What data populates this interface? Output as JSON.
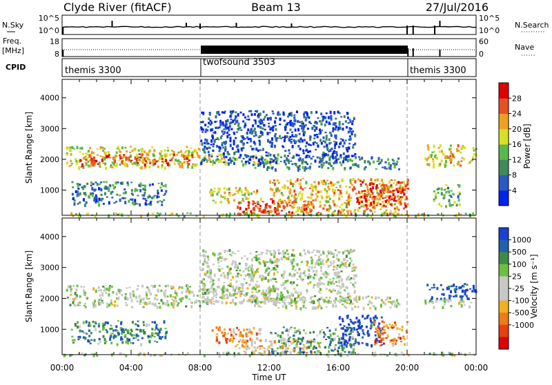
{
  "header": {
    "station_title": "Clyde River (fitACF)",
    "beam_title": "Beam 13",
    "date_title": "27/Jul/2016"
  },
  "nsky_panel": {
    "left_label": "N.Sky",
    "left_ticks": [
      "10^5",
      "10^0"
    ],
    "right_label": "N.Search",
    "right_ticks": [
      "10^5",
      "10^0"
    ]
  },
  "freq_panel": {
    "left_label_1": "Freq.",
    "left_label_2": "[MHz]",
    "left_ticks": [
      "18",
      "8"
    ],
    "right_label": "Nave",
    "right_ticks": [
      "60",
      "0"
    ]
  },
  "cpid_panel": {
    "label": "CPID",
    "segments": [
      {
        "label": "themis 3300",
        "start_h": 0,
        "end_h": 8
      },
      {
        "label": "twofsound 3503",
        "start_h": 8,
        "end_h": 20
      },
      {
        "label": "themis 3300",
        "start_h": 20,
        "end_h": 24
      }
    ]
  },
  "colors": {
    "power_scale": [
      "#0022ee",
      "#2a58c4",
      "#3f8a5a",
      "#5ab84a",
      "#d8e022",
      "#f0a020",
      "#e85020",
      "#e00000"
    ],
    "velocity_scale": [
      "#1a40d0",
      "#2060b0",
      "#3c8a48",
      "#6cc040",
      "#c8c8c4",
      "#c8c8c4",
      "#f0b020",
      "#f07a18",
      "#e84010",
      "#e00000"
    ]
  },
  "chart_data": [
    {
      "type": "heatmap",
      "name": "power",
      "ylabel": "Slant Range [km]",
      "xlabel": "Time UT",
      "x_ticks": [
        "00:00",
        "04:00",
        "08:00",
        "12:00",
        "16:00",
        "20:00",
        "00:00"
      ],
      "x_range_hours": [
        0,
        24
      ],
      "y_ticks": [
        1000,
        2000,
        3000,
        4000
      ],
      "ylim": [
        180,
        4600
      ],
      "colorbar_label": "Power [dB]",
      "colorbar_ticks": [
        4,
        8,
        12,
        16,
        20,
        24,
        28
      ],
      "colorbar_range": [
        0,
        32
      ],
      "mode_change_hours": [
        8,
        20
      ],
      "regions": [
        {
          "t": [
            0.2,
            8.0
          ],
          "r": [
            1750,
            2450
          ],
          "level": 0.55
        },
        {
          "t": [
            1.0,
            7.5
          ],
          "r": [
            1850,
            2200
          ],
          "level": 0.8
        },
        {
          "t": [
            8.0,
            12.5
          ],
          "r": [
            1850,
            2200
          ],
          "level": 0.55
        },
        {
          "t": [
            11.0,
            19.5
          ],
          "r": [
            1700,
            2100
          ],
          "level": 0.3
        },
        {
          "t": [
            0.5,
            6.0
          ],
          "r": [
            550,
            1300
          ],
          "level": 0.25
        },
        {
          "t": [
            8.5,
            11.5
          ],
          "r": [
            600,
            1100
          ],
          "level": 0.6
        },
        {
          "t": [
            10.0,
            15.0
          ],
          "r": [
            250,
            700
          ],
          "level": 0.85
        },
        {
          "t": [
            12.0,
            20.0
          ],
          "r": [
            250,
            1400
          ],
          "level": 0.65
        },
        {
          "t": [
            17.0,
            20.0
          ],
          "r": [
            500,
            1300
          ],
          "level": 0.9
        },
        {
          "t": [
            8.0,
            17.0
          ],
          "r": [
            1900,
            3600
          ],
          "level": 0.15
        },
        {
          "t": [
            21.0,
            24.0
          ],
          "r": [
            1800,
            2500
          ],
          "level": 0.6
        },
        {
          "t": [
            21.5,
            23.0
          ],
          "r": [
            500,
            1200
          ],
          "level": 0.4
        },
        {
          "t": [
            0.0,
            24.0
          ],
          "r": [
            180,
            280
          ],
          "level": 0.5
        }
      ]
    },
    {
      "type": "heatmap",
      "name": "velocity",
      "ylabel": "Slant Range [km]",
      "xlabel": "Time UT",
      "x_ticks": [
        "00:00",
        "04:00",
        "08:00",
        "12:00",
        "16:00",
        "20:00",
        "00:00"
      ],
      "x_range_hours": [
        0,
        24
      ],
      "y_ticks": [
        1000,
        2000,
        3000,
        4000
      ],
      "ylim": [
        180,
        4600
      ],
      "colorbar_label": "Velocity [m s⁻¹]",
      "colorbar_ticks": [
        "1000",
        "500",
        "100",
        "25",
        "-25",
        "-100",
        "-500",
        "-1000"
      ],
      "mode_change_hours": [
        8,
        20
      ],
      "regions": [
        {
          "t": [
            0.2,
            8.0
          ],
          "r": [
            1750,
            2450
          ],
          "level": 0.45
        },
        {
          "t": [
            8.0,
            12.5
          ],
          "r": [
            1850,
            2400
          ],
          "level": 0.45
        },
        {
          "t": [
            11.0,
            19.5
          ],
          "r": [
            1700,
            2100
          ],
          "level": 0.5
        },
        {
          "t": [
            0.5,
            6.0
          ],
          "r": [
            550,
            1300
          ],
          "level": 0.25
        },
        {
          "t": [
            8.5,
            11.5
          ],
          "r": [
            600,
            1100
          ],
          "level": 0.72
        },
        {
          "t": [
            10.0,
            15.0
          ],
          "r": [
            250,
            700
          ],
          "level": 0.6
        },
        {
          "t": [
            12.0,
            17.0
          ],
          "r": [
            250,
            1100
          ],
          "level": 0.3
        },
        {
          "t": [
            16.0,
            18.5
          ],
          "r": [
            500,
            1500
          ],
          "level": 0.05
        },
        {
          "t": [
            18.0,
            20.0
          ],
          "r": [
            500,
            1300
          ],
          "level": 0.75
        },
        {
          "t": [
            8.0,
            17.0
          ],
          "r": [
            1900,
            3600
          ],
          "level": 0.45
        },
        {
          "t": [
            21.0,
            24.0
          ],
          "r": [
            2000,
            2500
          ],
          "level": 0.05
        },
        {
          "t": [
            21.0,
            24.0
          ],
          "r": [
            1750,
            2000
          ],
          "level": 0.45
        },
        {
          "t": [
            0.0,
            24.0
          ],
          "r": [
            180,
            280
          ],
          "level": 0.45
        }
      ]
    }
  ]
}
